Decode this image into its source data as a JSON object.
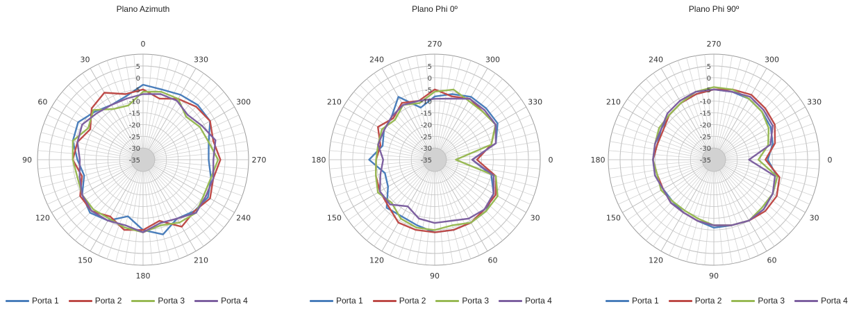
{
  "chart_data": [
    {
      "type": "polar-line",
      "title": "Plano Azimuth",
      "angle_labels": [
        "0",
        "30",
        "60",
        "90",
        "120",
        "150",
        "180",
        "210",
        "240",
        "270",
        "300",
        "330"
      ],
      "rlim": [
        -35,
        5
      ],
      "ring_labels": [
        "5",
        "0",
        "-5",
        "-10",
        "-15",
        "-20",
        "-25",
        "-30",
        "-35"
      ],
      "series": [
        {
          "name": "Porta 1",
          "color": "#4a7ebb",
          "step": 15,
          "values": [
            -3,
            -7,
            -8,
            -6,
            -3,
            -4,
            -7,
            -9,
            -5,
            -3,
            -5,
            -10,
            -5,
            -2,
            -6,
            -4,
            -3,
            -5,
            -7,
            -6,
            -2,
            -2,
            -3,
            -4
          ]
        },
        {
          "name": "Porta 2",
          "color": "#be4b48",
          "step": 15,
          "values": [
            -5,
            -6,
            -2,
            -4,
            -9,
            -6,
            -5,
            -8,
            -4,
            -4,
            -7,
            -4,
            -5,
            -8,
            -2,
            -4,
            -2,
            -4,
            -2,
            -4,
            -2,
            -3,
            -5,
            -8
          ]
        },
        {
          "name": "Porta 3",
          "color": "#98b954",
          "step": 15,
          "values": [
            -6,
            -11,
            -10,
            -5,
            -8,
            -4,
            -5,
            -6,
            -5,
            -5,
            -6,
            -5,
            -4,
            -6,
            -4,
            -3,
            -5,
            -5,
            -3,
            -6,
            -7,
            -9,
            -5,
            -5
          ]
        },
        {
          "name": "Porta 4",
          "color": "#7d60a0",
          "step": 15,
          "values": [
            -7,
            -8,
            -8,
            -7,
            -5,
            -6,
            -8,
            -7,
            -5,
            -4,
            -5,
            -6,
            -4,
            -7,
            -6,
            -3,
            -4,
            -4,
            -5,
            -3,
            -6,
            -8,
            -6,
            -6
          ]
        }
      ]
    },
    {
      "type": "polar-line",
      "title": "Plano Phi 0º",
      "angle_labels": [
        "0",
        "30",
        "60",
        "90",
        "120",
        "150",
        "180",
        "210",
        "240",
        "270",
        "300",
        "330"
      ],
      "rlim": [
        -35,
        5
      ],
      "ring_labels": [
        "5",
        "0",
        "-5",
        "-10",
        "-15",
        "-20",
        "-25",
        "-30",
        "-35"
      ],
      "series": [
        {
          "name": "Porta 1",
          "color": "#4a7ebb",
          "step": 15,
          "values": [
            -19,
            -10,
            -6,
            -4,
            -4,
            -4,
            -4,
            -6,
            -7,
            -6,
            -12,
            -13,
            -7,
            -12,
            -10,
            -9,
            -4,
            -12,
            -8,
            -6,
            -4,
            -4,
            -4,
            -8
          ]
        },
        {
          "name": "Porta 2",
          "color": "#be4b48",
          "step": 15,
          "values": [
            -17,
            -8,
            -5,
            -5,
            -4,
            -4,
            -4,
            -4,
            -4,
            -7,
            -8,
            -9,
            -10,
            -11,
            -7,
            -10,
            -7,
            -9,
            -5,
            -7,
            -5,
            -6,
            -5,
            -10
          ]
        },
        {
          "name": "Porta 3",
          "color": "#98b954",
          "step": 15,
          "values": [
            -26,
            -8,
            -4,
            -4,
            -4,
            -6,
            -5,
            -5,
            -6,
            -9,
            -7,
            -9,
            -10,
            -10,
            -9,
            -11,
            -8,
            -10,
            -6,
            -4,
            -6,
            -6,
            -5,
            -10
          ]
        },
        {
          "name": "Porta 4",
          "color": "#7d60a0",
          "step": 15,
          "values": [
            -19,
            -9,
            -6,
            -5,
            -6,
            -8,
            -8,
            -9,
            -12,
            -8,
            -8,
            -11,
            -13,
            -10,
            -10,
            -9,
            -8,
            -9,
            -9,
            -8,
            -5,
            -5,
            -5,
            -8
          ]
        }
      ]
    },
    {
      "type": "polar-line",
      "title": "Plano Phi 90º",
      "angle_labels": [
        "0",
        "30",
        "60",
        "90",
        "120",
        "150",
        "180",
        "210",
        "240",
        "270",
        "300",
        "330"
      ],
      "rlim": [
        -35,
        5
      ],
      "ring_labels": [
        "5",
        "0",
        "-5",
        "-10",
        "-15",
        "-20",
        "-25",
        "-30",
        "-35"
      ],
      "series": [
        {
          "name": "Porta 1",
          "color": "#4a7ebb",
          "step": 15,
          "values": [
            -12,
            -7,
            -6,
            -5,
            -5,
            -6,
            -6,
            -8,
            -9,
            -10,
            -10,
            -9,
            -9,
            -10,
            -9,
            -8,
            -7,
            -6,
            -5,
            -5,
            -5,
            -6,
            -7,
            -9
          ]
        },
        {
          "name": "Porta 2",
          "color": "#be4b48",
          "step": 15,
          "values": [
            -13,
            -6,
            -4,
            -4,
            -5,
            -6,
            -7,
            -8,
            -9,
            -9,
            -10,
            -10,
            -9,
            -10,
            -10,
            -8,
            -7,
            -6,
            -5,
            -4,
            -3,
            -4,
            -5,
            -8
          ]
        },
        {
          "name": "Porta 3",
          "color": "#98b954",
          "step": 15,
          "values": [
            -16,
            -7,
            -6,
            -6,
            -5,
            -6,
            -7,
            -9,
            -10,
            -10,
            -9,
            -10,
            -9,
            -9,
            -8,
            -8,
            -7,
            -5,
            -4,
            -4,
            -5,
            -6,
            -8,
            -11
          ]
        },
        {
          "name": "Porta 4",
          "color": "#7d60a0",
          "step": 15,
          "values": [
            -20,
            -8,
            -6,
            -5,
            -5,
            -6,
            -7,
            -8,
            -9,
            -9,
            -10,
            -9,
            -9,
            -9,
            -9,
            -7,
            -6,
            -5,
            -5,
            -5,
            -4,
            -5,
            -6,
            -10
          ]
        }
      ]
    }
  ],
  "legend": [
    {
      "label": "Porta 1",
      "color": "#4a7ebb"
    },
    {
      "label": "Porta 2",
      "color": "#be4b48"
    },
    {
      "label": "Porta 3",
      "color": "#98b954"
    },
    {
      "label": "Porta 4",
      "color": "#7d60a0"
    }
  ]
}
